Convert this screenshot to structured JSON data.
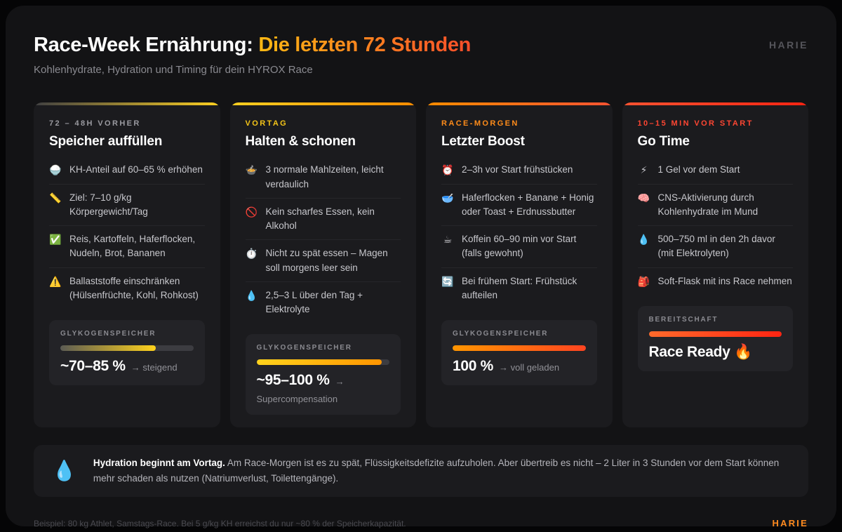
{
  "header": {
    "title_main": "Race-Week Ernährung: ",
    "title_accent": "Die letzten 72 Stunden",
    "accent_from": "#fdb813",
    "accent_to": "#ff4e2a",
    "subtitle": "Kohlenhydrate, Hydration und Timing für dein HYROX Race",
    "brand": "HARIE"
  },
  "cards": [
    {
      "eyebrow": "72 – 48H VORHER",
      "eyebrow_color": "#9a9aa0",
      "accent_from": "#3f3f42",
      "accent_to": "#fdd021",
      "title": "Speicher auffüllen",
      "items": [
        {
          "icon": "🍚",
          "text": "KH-Anteil auf 60–65 % erhöhen"
        },
        {
          "icon": "📏",
          "text": "Ziel: 7–10 g/kg Körpergewicht/Tag"
        },
        {
          "icon": "✅",
          "text": "Reis, Kartoffeln, Haferflocken, Nudeln, Brot, Bananen"
        },
        {
          "icon": "⚠️",
          "text": "Ballaststoffe einschränken (Hülsenfrüchte, Kohl, Rohkost)"
        }
      ],
      "meter": {
        "label": "GLYKOGENSPEICHER",
        "value": "~70–85 %",
        "suffix": "→ steigend",
        "sub": "",
        "fill_percent": 72,
        "fill_from": "#5c5c54",
        "fill_to": "#ffd21c"
      }
    },
    {
      "eyebrow": "VORTAG",
      "eyebrow_color": "#f5c518",
      "accent_from": "#fdd021",
      "accent_to": "#fb8c00",
      "title": "Halten & schonen",
      "items": [
        {
          "icon": "🍲",
          "text": "3 normale Mahlzeiten, leicht verdaulich"
        },
        {
          "icon": "🚫",
          "text": "Kein scharfes Essen, kein Alkohol"
        },
        {
          "icon": "⏱️",
          "text": "Nicht zu spät essen – Magen soll morgens leer sein"
        },
        {
          "icon": "💧",
          "text": "2,5–3 L über den Tag + Elektrolyte"
        }
      ],
      "meter": {
        "label": "GLYKOGENSPEICHER",
        "value": "~95–100 %",
        "suffix": "→",
        "sub": "Supercompensation",
        "fill_percent": 94,
        "fill_from": "#ffd21c",
        "fill_to": "#ff9500"
      }
    },
    {
      "eyebrow": "RACE-MORGEN",
      "eyebrow_color": "#ff8c1a",
      "accent_from": "#fb8c00",
      "accent_to": "#ff5331",
      "title": "Letzter Boost",
      "items": [
        {
          "icon": "⏰",
          "text": "2–3h vor Start frühstücken"
        },
        {
          "icon": "🥣",
          "text": "Haferflocken + Banane + Honig oder Toast + Erdnussbutter"
        },
        {
          "icon": "☕",
          "text": "Koffein 60–90 min vor Start (falls gewohnt)"
        },
        {
          "icon": "🔄",
          "text": "Bei frühem Start: Frühstück aufteilen"
        }
      ],
      "meter": {
        "label": "GLYKOGENSPEICHER",
        "value": "100 %",
        "suffix": "→ voll geladen",
        "sub": "",
        "fill_percent": 100,
        "fill_from": "#ff9500",
        "fill_to": "#ff4420"
      }
    },
    {
      "eyebrow": "10–15 MIN VOR START",
      "eyebrow_color": "#ff4632",
      "accent_from": "#ff5331",
      "accent_to": "#ff2412",
      "title": "Go Time",
      "items": [
        {
          "icon": "⚡",
          "text": "1 Gel vor dem Start"
        },
        {
          "icon": "🧠",
          "text": "CNS-Aktivierung durch Kohlenhydrate im Mund"
        },
        {
          "icon": "💧",
          "text": "500–750 ml in den 2h davor (mit Elektrolyten)"
        },
        {
          "icon": "🎒",
          "text": "Soft-Flask mit ins Race nehmen"
        }
      ],
      "meter": {
        "label": "BEREITSCHAFT",
        "value": "Race Ready 🔥",
        "suffix": "",
        "sub": "",
        "fill_percent": 100,
        "fill_from": "#ff6a2b",
        "fill_to": "#ff2412"
      }
    }
  ],
  "note": {
    "icon": "💧",
    "strong": "Hydration beginnt am Vortag.",
    "text": " Am Race-Morgen ist es zu spät, Flüssigkeitsdefizite aufzuholen. Aber übertreib es nicht – 2 Liter in 3 Stunden vor dem Start können mehr schaden als nutzen (Natriumverlust, Toilettengänge)."
  },
  "footer": {
    "example": "Beispiel: 80 kg Athlet, Samstags-Race. Bei 5 g/kg KH erreichst du nur ~80 % der Speicherkapazität.",
    "brand": "HARIE",
    "brand_color": "#ff8a1e"
  }
}
